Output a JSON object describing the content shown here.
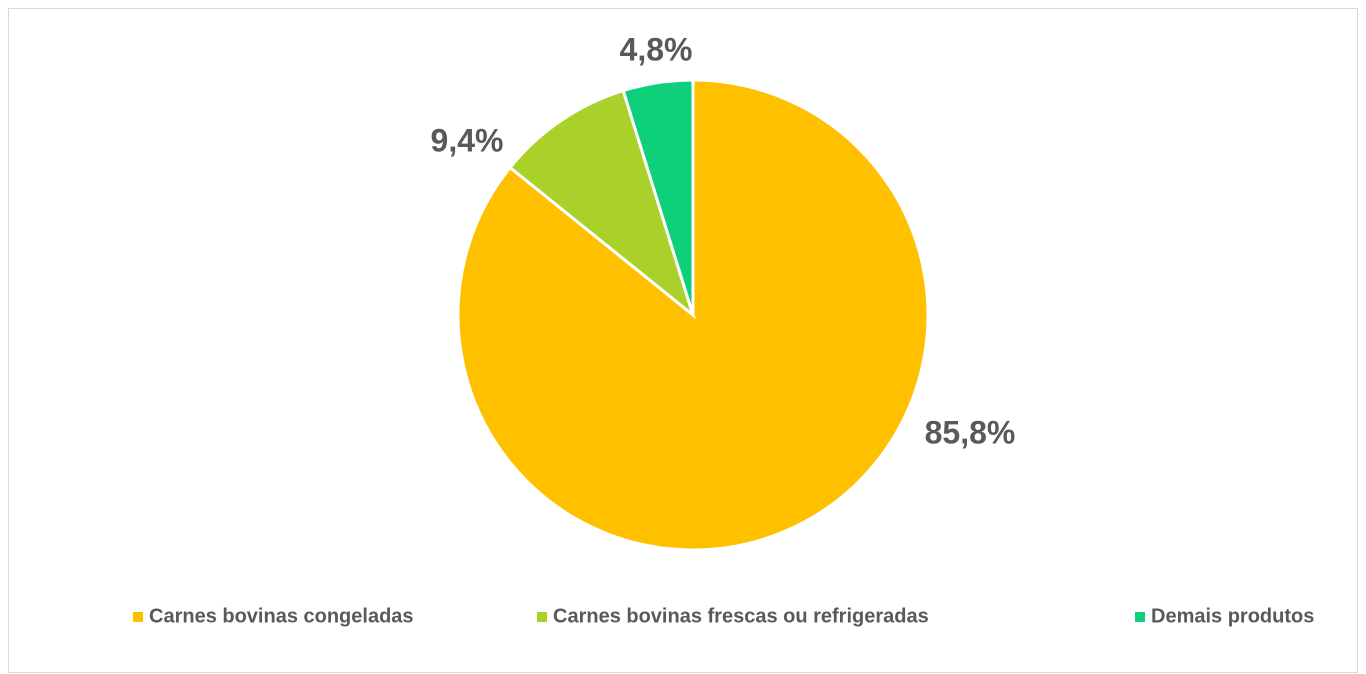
{
  "chart_data": {
    "type": "pie",
    "categories": [
      "Carnes bovinas congeladas",
      "Carnes bovinas frescas ou refrigeradas",
      "Demais produtos"
    ],
    "values": [
      85.8,
      9.4,
      4.8
    ],
    "value_labels": [
      "85,8%",
      "9,4%",
      "4,8%"
    ],
    "colors": [
      "#FFC000",
      "#A9D12A",
      "#0ECF7A"
    ],
    "legend": "bottom"
  }
}
